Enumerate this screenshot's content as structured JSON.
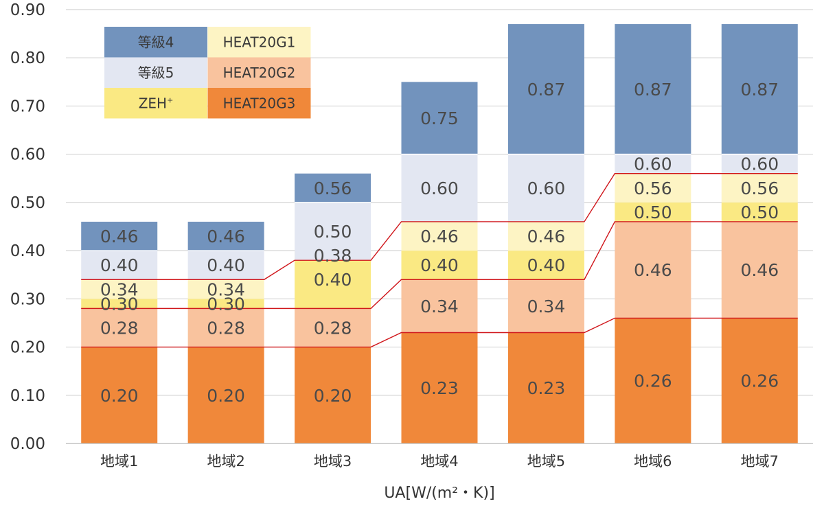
{
  "chart_data": {
    "type": "bar",
    "categories": [
      "地域1",
      "地域2",
      "地域3",
      "地域4",
      "地域5",
      "地域6",
      "地域7"
    ],
    "xlabel": "UA[W/(m²・K)]",
    "ylabel": "",
    "ylim": [
      0,
      0.9
    ],
    "yticks": [
      "0.00",
      "0.10",
      "0.20",
      "0.30",
      "0.40",
      "0.50",
      "0.60",
      "0.70",
      "0.80",
      "0.90"
    ],
    "grid": true,
    "legend_position": "top-left",
    "series": [
      {
        "name": "HEAT20G3",
        "color": "#F0883A",
        "values": [
          0.2,
          0.2,
          0.2,
          0.23,
          0.23,
          0.26,
          0.26
        ],
        "labels": [
          "0.20",
          "0.20",
          "0.20",
          "0.23",
          "0.23",
          "0.26",
          "0.26"
        ]
      },
      {
        "name": "HEAT20G2",
        "color": "#F9C39E",
        "values": [
          0.28,
          0.28,
          0.28,
          0.34,
          0.34,
          0.46,
          0.46
        ],
        "labels": [
          "0.28",
          "0.28",
          "0.28",
          "0.34",
          "0.34",
          "0.46",
          "0.46"
        ]
      },
      {
        "name": "ZEH",
        "color": "#FAE983",
        "values": [
          0.3,
          0.3,
          0.4,
          0.4,
          0.4,
          0.5,
          0.5
        ],
        "labels": [
          "0.30",
          "0.30",
          "0.40",
          "0.40",
          "0.40",
          "0.50",
          "0.50"
        ]
      },
      {
        "name": "HEAT20G1",
        "color": "#FDF4C4",
        "values": [
          0.34,
          0.34,
          0.38,
          0.46,
          0.46,
          0.56,
          0.56
        ],
        "labels": [
          "0.34",
          "0.34",
          "0.38",
          "0.46",
          "0.46",
          "0.56",
          "0.56"
        ]
      },
      {
        "name": "等級5",
        "color": "#E3E7F2",
        "values": [
          0.4,
          0.4,
          0.5,
          0.6,
          0.6,
          0.6,
          0.6
        ],
        "labels": [
          "0.40",
          "0.40",
          "0.50",
          "0.60",
          "0.60",
          "0.60",
          "0.60"
        ]
      },
      {
        "name": "等級4",
        "color": "#7293BD",
        "values": [
          0.46,
          0.46,
          0.56,
          0.75,
          0.87,
          0.87,
          0.87
        ],
        "labels": [
          "0.46",
          "0.46",
          "0.56",
          "0.75",
          "0.87",
          "0.87",
          "0.87"
        ]
      }
    ],
    "legend": [
      {
        "label": "等級4",
        "color": "#7293BD",
        "sup": ""
      },
      {
        "label": "HEAT20G1",
        "color": "#FDF4C4",
        "sup": ""
      },
      {
        "label": "等級5",
        "color": "#E3E7F2",
        "sup": ""
      },
      {
        "label": "HEAT20G2",
        "color": "#F9C39E",
        "sup": ""
      },
      {
        "label": "ZEH",
        "color": "#FAE983",
        "sup": "+"
      },
      {
        "label": "HEAT20G3",
        "color": "#F0883A",
        "sup": ""
      }
    ],
    "threshold_lines_color": "#D0161B",
    "threshold_series": [
      "HEAT20G3",
      "HEAT20G2",
      "HEAT20G1"
    ]
  }
}
